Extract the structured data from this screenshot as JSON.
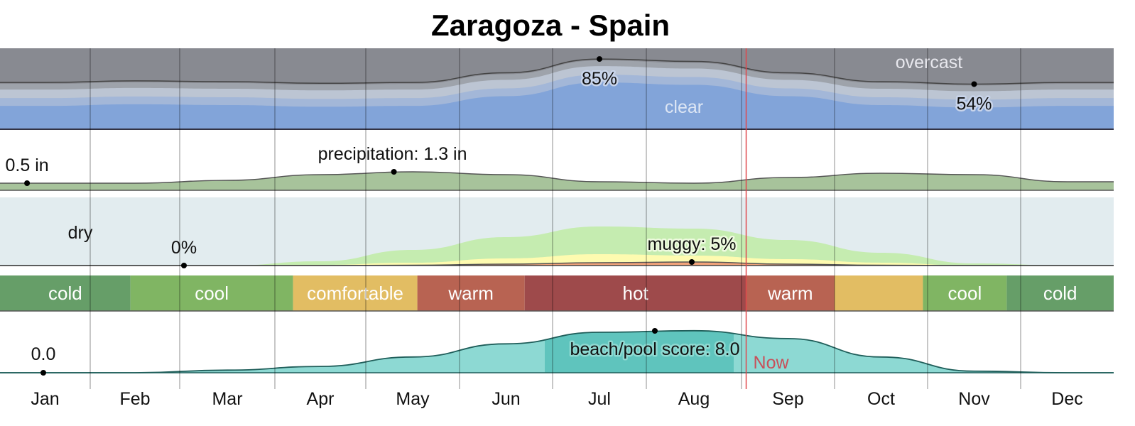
{
  "title": "Zaragoza - Spain",
  "chart_data": {
    "type": "area",
    "title": "Zaragoza - Spain",
    "months": [
      "Jan",
      "Feb",
      "Mar",
      "Apr",
      "May",
      "Jun",
      "Jul",
      "Aug",
      "Sep",
      "Oct",
      "Nov",
      "Dec"
    ],
    "now_label": "Now",
    "now_month": 8.05,
    "colors": {
      "overcast": "#888a91",
      "clear": "#82a4d9",
      "precip": "#a7c39b",
      "dry": "#e2ecef",
      "muggy": "#f2a37a",
      "beach": "#8dd9d3",
      "beach_peak": "#5fc4bd",
      "now": "#e0474c"
    },
    "clouds": {
      "label_top": "overcast",
      "label_bottom": "clear",
      "unit": "%",
      "clear_pct": [
        56,
        58,
        57,
        55,
        56,
        68,
        85,
        82,
        68,
        57,
        54,
        56
      ],
      "annotations": [
        {
          "month_index": 6,
          "text": "85%"
        },
        {
          "month_index": 10,
          "text": "54%"
        }
      ]
    },
    "precipitation": {
      "unit": "in",
      "values": [
        0.5,
        0.5,
        0.7,
        1.1,
        1.3,
        1.1,
        0.6,
        0.5,
        0.9,
        1.2,
        1.1,
        0.6
      ],
      "annotations": [
        {
          "month_index": 0,
          "text": "0.5 in"
        },
        {
          "month_index": 4,
          "text": "precipitation: 1.3 in"
        }
      ]
    },
    "humidity": {
      "label_dry": "dry",
      "muggy_pct": [
        0,
        0,
        0,
        0,
        0.5,
        2,
        4,
        5,
        2,
        0.5,
        0,
        0
      ],
      "humid_pct": [
        0,
        0,
        0,
        1,
        4,
        10,
        16,
        14,
        9,
        4,
        0,
        0
      ],
      "comfortable_humid_pct": [
        0,
        0,
        0,
        6,
        22,
        40,
        55,
        52,
        36,
        18,
        3,
        0
      ],
      "annotations": [
        {
          "month_index": 1.5,
          "text": "0%"
        },
        {
          "month_index": 7,
          "text": "muggy: 5%"
        }
      ]
    },
    "temperature_bands": [
      {
        "label": "cold",
        "start": 0,
        "end": 1.45,
        "color": "#669e68"
      },
      {
        "label": "cool",
        "start": 1.45,
        "end": 3.2,
        "color": "#80b563"
      },
      {
        "label": "comfortable",
        "start": 3.2,
        "end": 4.55,
        "color": "#e2bd63"
      },
      {
        "label": "warm",
        "start": 4.55,
        "end": 5.7,
        "color": "#b86352"
      },
      {
        "label": "hot",
        "start": 5.7,
        "end": 8.05,
        "color": "#9e4a4b"
      },
      {
        "label": "warm",
        "start": 8.05,
        "end": 9.0,
        "color": "#b86352"
      },
      {
        "label": "",
        "start": 9.0,
        "end": 9.95,
        "color": "#e2bd63"
      },
      {
        "label": "cool",
        "start": 9.95,
        "end": 10.85,
        "color": "#80b563"
      },
      {
        "label": "cold",
        "start": 10.85,
        "end": 12,
        "color": "#669e68"
      }
    ],
    "beach_score": {
      "range": [
        0,
        10
      ],
      "values": [
        0,
        0,
        0.5,
        1.2,
        3,
        5.5,
        7.7,
        8.0,
        6.5,
        3,
        0.3,
        0
      ],
      "annotations": [
        {
          "month_index": 0,
          "text": "0.0"
        },
        {
          "month_index": 7,
          "text": "beach/pool score: 8.0"
        }
      ]
    }
  }
}
